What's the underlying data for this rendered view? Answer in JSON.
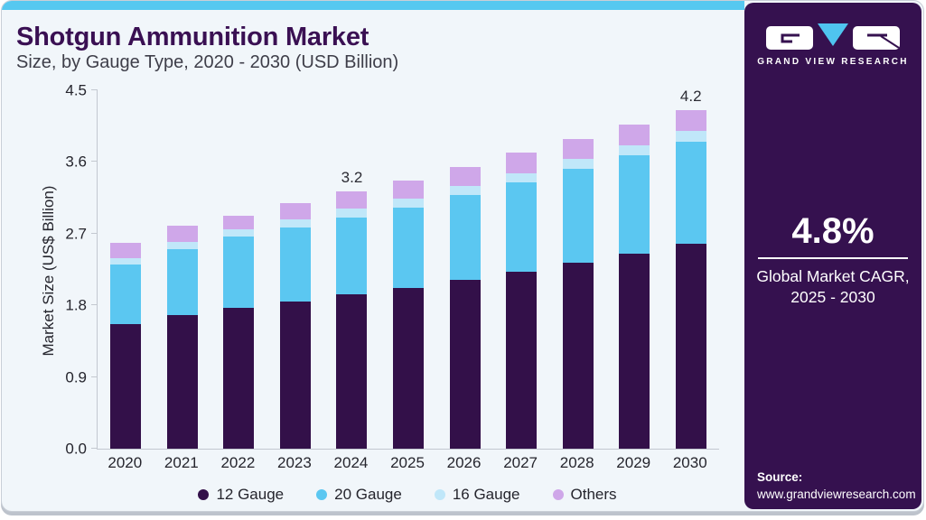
{
  "header": {
    "title": "Shotgun Ammunition Market",
    "subtitle": "Size, by Gauge Type, 2020 - 2030 (USD Billion)"
  },
  "sidebar": {
    "brand": "GRAND VIEW RESEARCH",
    "cagr_value": "4.8%",
    "cagr_line1": "Global Market CAGR,",
    "cagr_line2": "2025 - 2030",
    "source_label": "Source:",
    "source_url": "www.grandviewresearch.com",
    "bg_color": "#35114f",
    "accent_color": "#4fc4ef"
  },
  "colors": {
    "card_background": "#f1f6fa",
    "top_strip": "#56c8f0",
    "title_text": "#3a1053",
    "axis_line": "#c3c8d0"
  },
  "chart_data": {
    "type": "bar",
    "stacked": true,
    "title": "Shotgun Ammunition Market Size, by Gauge Type, 2020 - 2030 (USD Billion)",
    "xlabel": "",
    "ylabel": "Market Size (US$ Billion)",
    "ylim": [
      0,
      4.5
    ],
    "yticks": [
      0.0,
      0.9,
      1.8,
      2.7,
      3.6,
      4.5
    ],
    "ytick_labels": [
      "0.0",
      "0.9",
      "1.8",
      "2.7",
      "3.6",
      "4.5"
    ],
    "grid": false,
    "legend_position": "bottom",
    "categories": [
      "2020",
      "2021",
      "2022",
      "2023",
      "2024",
      "2025",
      "2026",
      "2027",
      "2028",
      "2029",
      "2030"
    ],
    "series": [
      {
        "name": "12 Gauge",
        "color": "#331049",
        "values": [
          1.56,
          1.68,
          1.77,
          1.85,
          1.94,
          2.02,
          2.12,
          2.22,
          2.33,
          2.45,
          2.57
        ]
      },
      {
        "name": "20 Gauge",
        "color": "#5bc7f1",
        "values": [
          0.75,
          0.83,
          0.89,
          0.93,
          0.96,
          1.01,
          1.07,
          1.12,
          1.18,
          1.23,
          1.28
        ]
      },
      {
        "name": "16 Gauge",
        "color": "#c0e7f9",
        "values": [
          0.08,
          0.09,
          0.09,
          0.1,
          0.12,
          0.11,
          0.11,
          0.12,
          0.13,
          0.13,
          0.14
        ]
      },
      {
        "name": "Others",
        "color": "#cfa7e9",
        "values": [
          0.19,
          0.2,
          0.18,
          0.2,
          0.21,
          0.23,
          0.24,
          0.26,
          0.25,
          0.26,
          0.26
        ]
      }
    ],
    "bar_total_labels": [
      null,
      null,
      null,
      null,
      "3.2",
      null,
      null,
      null,
      null,
      null,
      "4.2"
    ]
  }
}
